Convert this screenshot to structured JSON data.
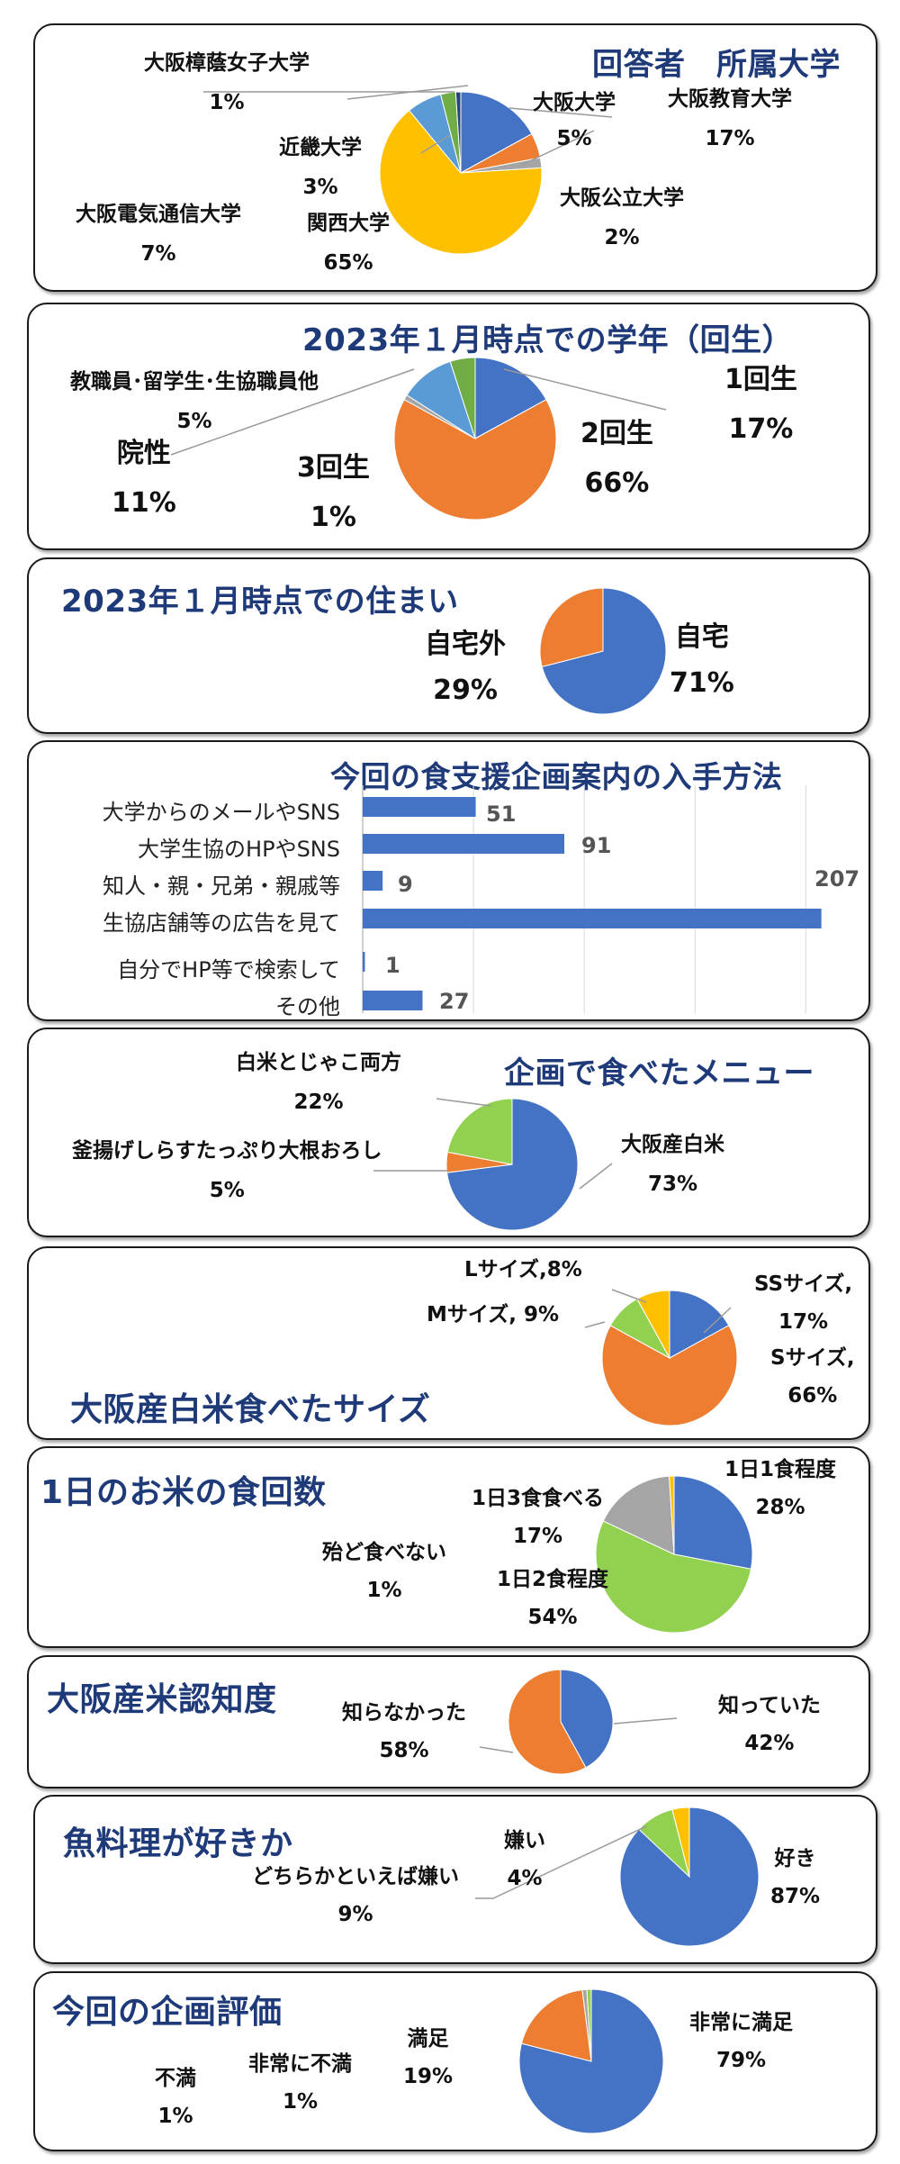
{
  "colors": {
    "blue": "#4472c4",
    "orange": "#ed7d31",
    "gray": "#a5a5a5",
    "yellow": "#ffc000",
    "lightblue": "#5b9bd5",
    "green": "#70ad47",
    "lime": "#92d050",
    "title": "#1f3a78"
  },
  "chart_data": [
    {
      "type": "pie",
      "title": "回答者　所属大学",
      "slices": [
        {
          "label": "大阪教育大学",
          "value": 17,
          "display": "17%",
          "color": "#4472c4"
        },
        {
          "label": "大阪大学",
          "value": 5,
          "display": "5%",
          "color": "#ed7d31"
        },
        {
          "label": "大阪公立大学",
          "value": 2,
          "display": "2%",
          "color": "#a5a5a5"
        },
        {
          "label": "関西大学",
          "value": 65,
          "display": "65%",
          "color": "#ffc000"
        },
        {
          "label": "大阪電気通信大学",
          "value": 7,
          "display": "7%",
          "color": "#5b9bd5"
        },
        {
          "label": "近畿大学",
          "value": 3,
          "display": "3%",
          "color": "#70ad47"
        },
        {
          "label": "大阪樟蔭女子大学",
          "value": 1,
          "display": "1%",
          "color": "#264478"
        }
      ]
    },
    {
      "type": "pie",
      "title": "2023年１月時点での学年（回生）",
      "slices": [
        {
          "label": "1回生",
          "value": 17,
          "display": "17%",
          "color": "#4472c4"
        },
        {
          "label": "2回生",
          "value": 66,
          "display": "66%",
          "color": "#ed7d31"
        },
        {
          "label": "3回生",
          "value": 1,
          "display": "1%",
          "color": "#a5a5a5"
        },
        {
          "label": "院性",
          "value": 11,
          "display": "11%",
          "color": "#5b9bd5"
        },
        {
          "label": "教職員･留学生･生協職員他",
          "value": 5,
          "display": "5%",
          "color": "#70ad47"
        }
      ]
    },
    {
      "type": "pie",
      "title": "2023年１月時点での住まい",
      "slices": [
        {
          "label": "自宅",
          "value": 71,
          "display": "71%",
          "color": "#4472c4"
        },
        {
          "label": "自宅外",
          "value": 29,
          "display": "29%",
          "color": "#ed7d31"
        }
      ]
    },
    {
      "type": "bar",
      "orientation": "horizontal",
      "title": "今回の食支援企画案内の入手方法",
      "categories": [
        "大学からのメールやSNS",
        "大学生協のHPやSNS",
        "知人・親・兄弟・親戚等",
        "生協店舗等の広告を見て",
        "自分でHP等で検索して",
        "その他"
      ],
      "values": [
        51,
        91,
        9,
        207,
        1,
        27
      ],
      "xlim": [
        0,
        210
      ],
      "grid": true
    },
    {
      "type": "pie",
      "title": "企画で食べたメニュー",
      "slices": [
        {
          "label": "大阪産白米",
          "value": 73,
          "display": "73%",
          "color": "#4472c4"
        },
        {
          "label": "釜揚げしらすたっぷり大根おろし",
          "value": 5,
          "display": "5%",
          "color": "#ed7d31"
        },
        {
          "label": "白米とじゃこ両方",
          "value": 22,
          "display": "22%",
          "color": "#92d050"
        }
      ]
    },
    {
      "type": "pie",
      "title": "大阪産白米食べたサイズ",
      "slices": [
        {
          "label": "SSサイズ,",
          "value": 17,
          "display": "17%",
          "color": "#4472c4"
        },
        {
          "label": "Sサイズ,",
          "value": 66,
          "display": "66%",
          "color": "#ed7d31"
        },
        {
          "label": "Mサイズ,",
          "value": 9,
          "display": "9%",
          "color": "#92d050"
        },
        {
          "label": "Lサイズ,",
          "value": 8,
          "display": "8%",
          "color": "#ffc000"
        }
      ]
    },
    {
      "type": "pie",
      "title": "1日のお米の食回数",
      "slices": [
        {
          "label": "1日1食程度",
          "value": 28,
          "display": "28%",
          "color": "#4472c4"
        },
        {
          "label": "1日2食程度",
          "value": 54,
          "display": "54%",
          "color": "#92d050"
        },
        {
          "label": "1日3食食べる",
          "value": 17,
          "display": "17%",
          "color": "#a5a5a5"
        },
        {
          "label": "殆ど食べない",
          "value": 1,
          "display": "1%",
          "color": "#ffc000"
        }
      ]
    },
    {
      "type": "pie",
      "title": "大阪産米認知度",
      "slices": [
        {
          "label": "知っていた",
          "value": 42,
          "display": "42%",
          "color": "#4472c4"
        },
        {
          "label": "知らなかった",
          "value": 58,
          "display": "58%",
          "color": "#ed7d31"
        }
      ]
    },
    {
      "type": "pie",
      "title": "魚料理が好きか",
      "slices": [
        {
          "label": "好き",
          "value": 87,
          "display": "87%",
          "color": "#4472c4"
        },
        {
          "label": "どちらかといえば嫌い",
          "value": 9,
          "display": "9%",
          "color": "#92d050"
        },
        {
          "label": "嫌い",
          "value": 4,
          "display": "4%",
          "color": "#ffc000"
        }
      ]
    },
    {
      "type": "pie",
      "title": "今回の企画評価",
      "slices": [
        {
          "label": "非常に満足",
          "value": 79,
          "display": "79%",
          "color": "#4472c4"
        },
        {
          "label": "満足",
          "value": 19,
          "display": "19%",
          "color": "#ed7d31"
        },
        {
          "label": "非常に不満",
          "value": 1,
          "display": "1%",
          "color": "#a5a5a5"
        },
        {
          "label": "不満",
          "value": 1,
          "display": "1%",
          "color": "#92d050"
        }
      ]
    }
  ]
}
